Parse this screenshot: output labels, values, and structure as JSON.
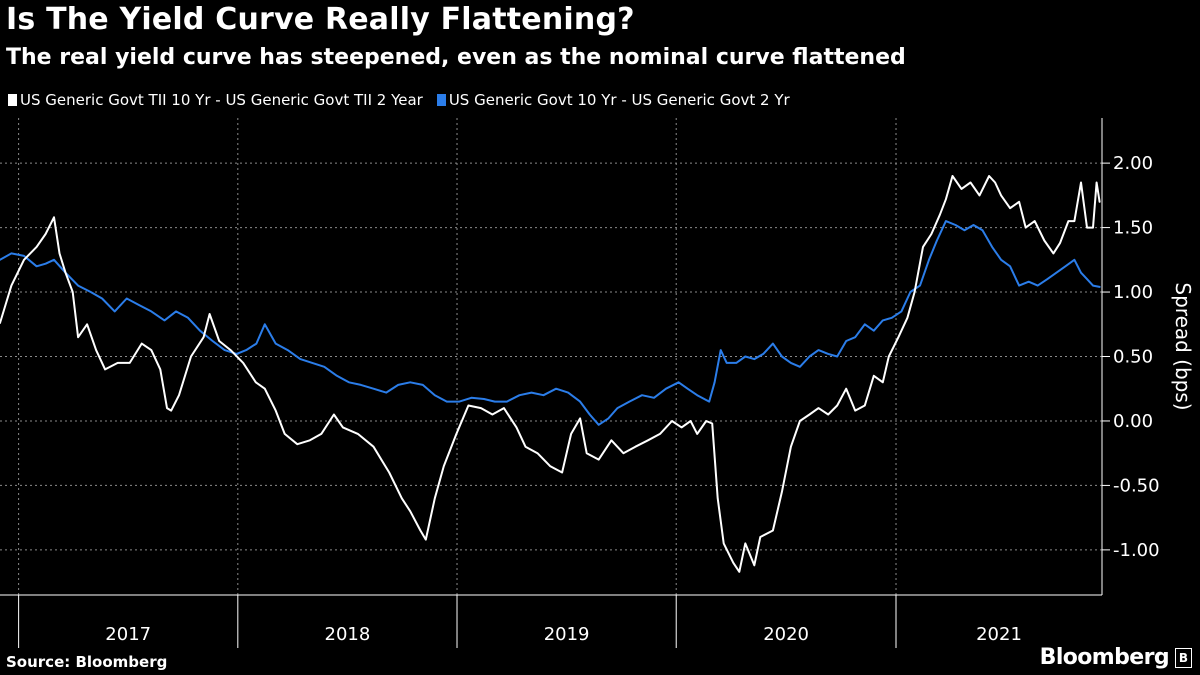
{
  "title": "Is The Yield Curve Really Flattening?",
  "subtitle": "The real yield curve has steepened, even as the nominal curve flattened",
  "source": "Source: Bloomberg",
  "brand": {
    "name": "Bloomberg",
    "mark": "B"
  },
  "colors": {
    "background": "#000000",
    "series_real": "#ffffff",
    "series_nominal": "#2b7de9",
    "grid": "#8a8a8a"
  },
  "chart_data": {
    "type": "line",
    "title": "Is The Yield Curve Really Flattening?",
    "subtitle": "The real yield curve has steepened, even as the nominal curve flattened",
    "ylabel": "Spread (bps)",
    "xlabel": "",
    "xlim": [
      "2016-12-01",
      "2021-12-10"
    ],
    "ylim": [
      -1.35,
      2.35
    ],
    "y_ticks": [
      2.0,
      1.5,
      1.0,
      0.5,
      0.0,
      -0.5,
      -1.0
    ],
    "y_tick_labels": [
      "2.00",
      "1.50",
      "1.00",
      "0.50",
      "0.00",
      "-0.50",
      "-1.00"
    ],
    "x_tick_labels": [
      "2017",
      "2018",
      "2019",
      "2020",
      "2021"
    ],
    "grid": true,
    "legend_position": "top-left",
    "series": [
      {
        "name": "US Generic Govt TII 10 Yr - US Generic Govt TII 2 Year",
        "color": "#ffffff",
        "points": [
          [
            "2016-12-01",
            0.76
          ],
          [
            "2016-12-20",
            1.05
          ],
          [
            "2017-01-10",
            1.25
          ],
          [
            "2017-01-31",
            1.35
          ],
          [
            "2017-02-15",
            1.45
          ],
          [
            "2017-03-01",
            1.58
          ],
          [
            "2017-03-10",
            1.3
          ],
          [
            "2017-03-20",
            1.15
          ],
          [
            "2017-04-01",
            1.0
          ],
          [
            "2017-04-10",
            0.65
          ],
          [
            "2017-04-25",
            0.75
          ],
          [
            "2017-05-10",
            0.55
          ],
          [
            "2017-05-25",
            0.4
          ],
          [
            "2017-06-15",
            0.45
          ],
          [
            "2017-07-05",
            0.45
          ],
          [
            "2017-07-25",
            0.6
          ],
          [
            "2017-08-10",
            0.55
          ],
          [
            "2017-08-25",
            0.4
          ],
          [
            "2017-09-05",
            0.1
          ],
          [
            "2017-09-12",
            0.08
          ],
          [
            "2017-09-25",
            0.2
          ],
          [
            "2017-10-15",
            0.5
          ],
          [
            "2017-11-05",
            0.65
          ],
          [
            "2017-11-15",
            0.83
          ],
          [
            "2017-12-01",
            0.62
          ],
          [
            "2017-12-20",
            0.55
          ],
          [
            "2018-01-10",
            0.45
          ],
          [
            "2018-01-31",
            0.3
          ],
          [
            "2018-02-15",
            0.25
          ],
          [
            "2018-03-05",
            0.08
          ],
          [
            "2018-03-20",
            -0.1
          ],
          [
            "2018-04-10",
            -0.18
          ],
          [
            "2018-05-01",
            -0.15
          ],
          [
            "2018-05-20",
            -0.1
          ],
          [
            "2018-06-10",
            0.05
          ],
          [
            "2018-06-25",
            -0.05
          ],
          [
            "2018-07-20",
            -0.1
          ],
          [
            "2018-08-15",
            -0.2
          ],
          [
            "2018-09-10",
            -0.4
          ],
          [
            "2018-10-01",
            -0.6
          ],
          [
            "2018-10-15",
            -0.7
          ],
          [
            "2018-11-01",
            -0.85
          ],
          [
            "2018-11-10",
            -0.92
          ],
          [
            "2018-11-25",
            -0.6
          ],
          [
            "2018-12-10",
            -0.35
          ],
          [
            "2018-12-31",
            -0.1
          ],
          [
            "2019-01-20",
            0.12
          ],
          [
            "2019-02-10",
            0.1
          ],
          [
            "2019-03-01",
            0.05
          ],
          [
            "2019-03-20",
            0.1
          ],
          [
            "2019-04-10",
            -0.05
          ],
          [
            "2019-04-25",
            -0.2
          ],
          [
            "2019-05-15",
            -0.25
          ],
          [
            "2019-06-05",
            -0.35
          ],
          [
            "2019-06-25",
            -0.4
          ],
          [
            "2019-07-10",
            -0.1
          ],
          [
            "2019-07-25",
            0.02
          ],
          [
            "2019-08-05",
            -0.25
          ],
          [
            "2019-08-25",
            -0.3
          ],
          [
            "2019-09-15",
            -0.15
          ],
          [
            "2019-10-05",
            -0.25
          ],
          [
            "2019-10-25",
            -0.2
          ],
          [
            "2019-11-15",
            -0.15
          ],
          [
            "2019-12-05",
            -0.1
          ],
          [
            "2019-12-25",
            0.0
          ],
          [
            "2020-01-10",
            -0.05
          ],
          [
            "2020-01-25",
            0.0
          ],
          [
            "2020-02-05",
            -0.1
          ],
          [
            "2020-02-20",
            0.0
          ],
          [
            "2020-03-01",
            -0.02
          ],
          [
            "2020-03-10",
            -0.6
          ],
          [
            "2020-03-20",
            -0.95
          ],
          [
            "2020-04-05",
            -1.1
          ],
          [
            "2020-04-15",
            -1.17
          ],
          [
            "2020-04-25",
            -0.95
          ],
          [
            "2020-05-10",
            -1.12
          ],
          [
            "2020-05-20",
            -0.9
          ],
          [
            "2020-06-10",
            -0.85
          ],
          [
            "2020-06-25",
            -0.55
          ],
          [
            "2020-07-10",
            -0.2
          ],
          [
            "2020-07-25",
            0.0
          ],
          [
            "2020-08-10",
            0.05
          ],
          [
            "2020-08-25",
            0.1
          ],
          [
            "2020-09-10",
            0.05
          ],
          [
            "2020-09-25",
            0.12
          ],
          [
            "2020-10-10",
            0.25
          ],
          [
            "2020-10-25",
            0.08
          ],
          [
            "2020-11-10",
            0.12
          ],
          [
            "2020-11-25",
            0.35
          ],
          [
            "2020-12-10",
            0.3
          ],
          [
            "2020-12-20",
            0.5
          ],
          [
            "2021-01-05",
            0.65
          ],
          [
            "2021-01-20",
            0.8
          ],
          [
            "2021-02-01",
            1.0
          ],
          [
            "2021-02-15",
            1.35
          ],
          [
            "2021-03-01",
            1.45
          ],
          [
            "2021-03-15",
            1.6
          ],
          [
            "2021-03-25",
            1.72
          ],
          [
            "2021-04-05",
            1.9
          ],
          [
            "2021-04-20",
            1.8
          ],
          [
            "2021-05-05",
            1.85
          ],
          [
            "2021-05-20",
            1.75
          ],
          [
            "2021-06-05",
            1.9
          ],
          [
            "2021-06-15",
            1.85
          ],
          [
            "2021-06-25",
            1.75
          ],
          [
            "2021-07-10",
            1.65
          ],
          [
            "2021-07-25",
            1.7
          ],
          [
            "2021-08-05",
            1.5
          ],
          [
            "2021-08-20",
            1.55
          ],
          [
            "2021-09-05",
            1.4
          ],
          [
            "2021-09-20",
            1.3
          ],
          [
            "2021-10-01",
            1.38
          ],
          [
            "2021-10-15",
            1.55
          ],
          [
            "2021-10-25",
            1.55
          ],
          [
            "2021-11-05",
            1.85
          ],
          [
            "2021-11-15",
            1.5
          ],
          [
            "2021-11-25",
            1.5
          ],
          [
            "2021-12-01",
            1.85
          ],
          [
            "2021-12-06",
            1.7
          ]
        ]
      },
      {
        "name": "US Generic Govt 10 Yr - US Generic Govt 2 Yr",
        "color": "#2b7de9",
        "points": [
          [
            "2016-12-01",
            1.25
          ],
          [
            "2016-12-20",
            1.3
          ],
          [
            "2017-01-10",
            1.28
          ],
          [
            "2017-01-31",
            1.2
          ],
          [
            "2017-02-15",
            1.22
          ],
          [
            "2017-03-01",
            1.25
          ],
          [
            "2017-03-20",
            1.15
          ],
          [
            "2017-04-10",
            1.05
          ],
          [
            "2017-05-01",
            1.0
          ],
          [
            "2017-05-20",
            0.95
          ],
          [
            "2017-06-10",
            0.85
          ],
          [
            "2017-06-30",
            0.95
          ],
          [
            "2017-07-20",
            0.9
          ],
          [
            "2017-08-10",
            0.85
          ],
          [
            "2017-09-01",
            0.78
          ],
          [
            "2017-09-20",
            0.85
          ],
          [
            "2017-10-10",
            0.8
          ],
          [
            "2017-10-30",
            0.7
          ],
          [
            "2017-11-20",
            0.62
          ],
          [
            "2017-12-10",
            0.55
          ],
          [
            "2017-12-30",
            0.52
          ],
          [
            "2018-01-15",
            0.55
          ],
          [
            "2018-02-01",
            0.6
          ],
          [
            "2018-02-15",
            0.75
          ],
          [
            "2018-03-05",
            0.6
          ],
          [
            "2018-03-25",
            0.55
          ],
          [
            "2018-04-15",
            0.48
          ],
          [
            "2018-05-05",
            0.45
          ],
          [
            "2018-05-25",
            0.42
          ],
          [
            "2018-06-15",
            0.35
          ],
          [
            "2018-07-05",
            0.3
          ],
          [
            "2018-07-25",
            0.28
          ],
          [
            "2018-08-15",
            0.25
          ],
          [
            "2018-09-05",
            0.22
          ],
          [
            "2018-09-25",
            0.28
          ],
          [
            "2018-10-15",
            0.3
          ],
          [
            "2018-11-05",
            0.28
          ],
          [
            "2018-11-25",
            0.2
          ],
          [
            "2018-12-15",
            0.15
          ],
          [
            "2019-01-05",
            0.15
          ],
          [
            "2019-01-25",
            0.18
          ],
          [
            "2019-02-15",
            0.17
          ],
          [
            "2019-03-05",
            0.15
          ],
          [
            "2019-03-25",
            0.15
          ],
          [
            "2019-04-15",
            0.2
          ],
          [
            "2019-05-05",
            0.22
          ],
          [
            "2019-05-25",
            0.2
          ],
          [
            "2019-06-15",
            0.25
          ],
          [
            "2019-07-05",
            0.22
          ],
          [
            "2019-07-25",
            0.15
          ],
          [
            "2019-08-10",
            0.05
          ],
          [
            "2019-08-25",
            -0.03
          ],
          [
            "2019-09-10",
            0.02
          ],
          [
            "2019-09-25",
            0.1
          ],
          [
            "2019-10-15",
            0.15
          ],
          [
            "2019-11-05",
            0.2
          ],
          [
            "2019-11-25",
            0.18
          ],
          [
            "2019-12-15",
            0.25
          ],
          [
            "2020-01-05",
            0.3
          ],
          [
            "2020-01-20",
            0.25
          ],
          [
            "2020-02-05",
            0.2
          ],
          [
            "2020-02-25",
            0.15
          ],
          [
            "2020-03-05",
            0.3
          ],
          [
            "2020-03-15",
            0.55
          ],
          [
            "2020-03-25",
            0.45
          ],
          [
            "2020-04-10",
            0.45
          ],
          [
            "2020-04-25",
            0.5
          ],
          [
            "2020-05-10",
            0.48
          ],
          [
            "2020-05-25",
            0.52
          ],
          [
            "2020-06-10",
            0.6
          ],
          [
            "2020-06-25",
            0.5
          ],
          [
            "2020-07-10",
            0.45
          ],
          [
            "2020-07-25",
            0.42
          ],
          [
            "2020-08-10",
            0.5
          ],
          [
            "2020-08-25",
            0.55
          ],
          [
            "2020-09-10",
            0.52
          ],
          [
            "2020-09-25",
            0.5
          ],
          [
            "2020-10-10",
            0.62
          ],
          [
            "2020-10-25",
            0.65
          ],
          [
            "2020-11-10",
            0.75
          ],
          [
            "2020-11-25",
            0.7
          ],
          [
            "2020-12-10",
            0.78
          ],
          [
            "2020-12-25",
            0.8
          ],
          [
            "2021-01-10",
            0.85
          ],
          [
            "2021-01-25",
            1.0
          ],
          [
            "2021-02-10",
            1.05
          ],
          [
            "2021-02-25",
            1.25
          ],
          [
            "2021-03-10",
            1.4
          ],
          [
            "2021-03-25",
            1.55
          ],
          [
            "2021-04-10",
            1.52
          ],
          [
            "2021-04-25",
            1.48
          ],
          [
            "2021-05-10",
            1.52
          ],
          [
            "2021-05-25",
            1.48
          ],
          [
            "2021-06-10",
            1.35
          ],
          [
            "2021-06-25",
            1.25
          ],
          [
            "2021-07-10",
            1.2
          ],
          [
            "2021-07-25",
            1.05
          ],
          [
            "2021-08-10",
            1.08
          ],
          [
            "2021-08-25",
            1.05
          ],
          [
            "2021-09-10",
            1.1
          ],
          [
            "2021-09-25",
            1.15
          ],
          [
            "2021-10-10",
            1.2
          ],
          [
            "2021-10-25",
            1.25
          ],
          [
            "2021-11-05",
            1.15
          ],
          [
            "2021-11-15",
            1.1
          ],
          [
            "2021-11-25",
            1.05
          ],
          [
            "2021-12-06",
            1.04
          ]
        ]
      }
    ]
  }
}
